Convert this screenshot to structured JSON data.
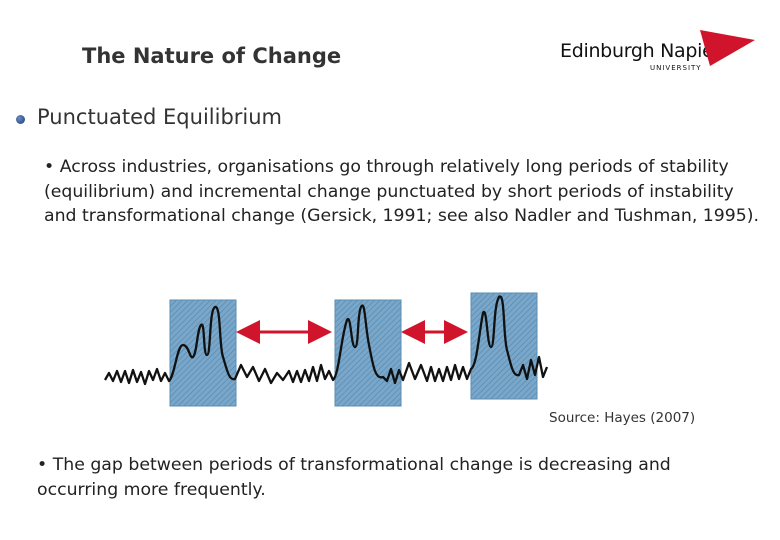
{
  "header": {
    "title": "The Nature of Change"
  },
  "logo": {
    "name": "Edinburgh Napier",
    "sub": "UNIVERSITY",
    "icon": "napier-triangle-logo"
  },
  "section": {
    "heading": "Punctuated Equilibrium",
    "bullet_icon": "bullet-icon"
  },
  "body": {
    "bullet": "•",
    "paragraph1": "Across industries, organisations go through relatively long  periods of stability  (equilibrium) and incremental change punctuated by short periods of instability and transformational change (Gersick, 1991; see also Nadler and Tushman, 1995).",
    "paragraph2": "The gap between periods of transformational change is decreasing and occurring more frequently."
  },
  "figure": {
    "source": "Source: Hayes (2007)"
  },
  "colors": {
    "accent_red": "#d0142c",
    "panel_blue": "#6f9fc4"
  }
}
